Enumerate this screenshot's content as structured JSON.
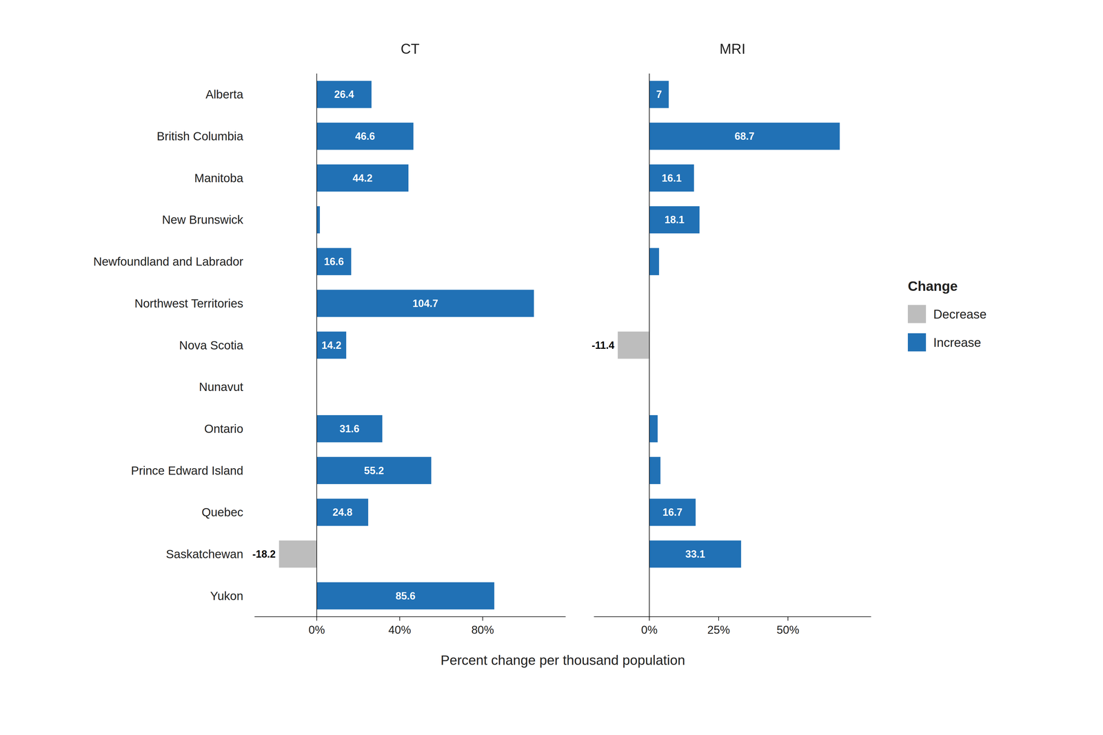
{
  "chart_data": [
    {
      "type": "bar",
      "orientation": "horizontal",
      "title": "CT",
      "xlabel": "Percent change per thousand population",
      "categories": [
        "Alberta",
        "British Columbia",
        "Manitoba",
        "New Brunswick",
        "Newfoundland and Labrador",
        "Northwest Territories",
        "Nova Scotia",
        "Nunavut",
        "Ontario",
        "Prince Edward Island",
        "Quebec",
        "Saskatchewan",
        "Yukon"
      ],
      "series": [
        {
          "name": "Decrease",
          "color": "#bdbdbd",
          "values": [
            null,
            null,
            null,
            null,
            null,
            null,
            null,
            null,
            null,
            null,
            null,
            -18.2,
            null
          ],
          "value_labels": [
            null,
            null,
            null,
            null,
            null,
            null,
            null,
            null,
            null,
            null,
            null,
            "-18.2",
            null
          ]
        },
        {
          "name": "Increase",
          "color": "#2171b5",
          "values": [
            26.4,
            46.6,
            44.2,
            1.5,
            16.6,
            104.7,
            14.2,
            null,
            31.6,
            55.2,
            24.8,
            null,
            85.6
          ],
          "value_labels": [
            "26.4",
            "46.6",
            "44.2",
            null,
            "16.6",
            "104.7",
            "14.2",
            null,
            "31.6",
            "55.2",
            "24.8",
            null,
            "85.6"
          ]
        }
      ],
      "xlim": [
        -30,
        120
      ],
      "xticks": [
        {
          "value": 0,
          "label": "0%"
        },
        {
          "value": 40,
          "label": "40%"
        },
        {
          "value": 80,
          "label": "80%"
        }
      ],
      "data_labels": true,
      "grid": false
    },
    {
      "type": "bar",
      "orientation": "horizontal",
      "title": "MRI",
      "categories": [
        "Alberta",
        "British Columbia",
        "Manitoba",
        "New Brunswick",
        "Newfoundland and Labrador",
        "Northwest Territories",
        "Nova Scotia",
        "Nunavut",
        "Ontario",
        "Prince Edward Island",
        "Quebec",
        "Saskatchewan",
        "Yukon"
      ],
      "series": [
        {
          "name": "Decrease",
          "color": "#bdbdbd",
          "values": [
            null,
            null,
            null,
            null,
            null,
            null,
            -11.4,
            null,
            null,
            null,
            null,
            null,
            null
          ],
          "value_labels": [
            null,
            null,
            null,
            null,
            null,
            null,
            "-11.4",
            null,
            null,
            null,
            null,
            null,
            null
          ]
        },
        {
          "name": "Increase",
          "color": "#2171b5",
          "values": [
            7,
            68.7,
            16.1,
            18.1,
            3.5,
            null,
            null,
            null,
            3,
            4,
            16.7,
            33.1,
            null
          ],
          "value_labels": [
            "7",
            "68.7",
            "16.1",
            "18.1",
            null,
            null,
            null,
            null,
            null,
            null,
            "16.7",
            "33.1",
            null
          ]
        }
      ],
      "xlim": [
        -20,
        80
      ],
      "xticks": [
        {
          "value": 0,
          "label": "0%"
        },
        {
          "value": 25,
          "label": "25%"
        },
        {
          "value": 50,
          "label": "50%"
        }
      ],
      "data_labels": true,
      "grid": false,
      "tick_labels": "x",
      "legend": "right",
      "legend_title": "Change"
    }
  ]
}
